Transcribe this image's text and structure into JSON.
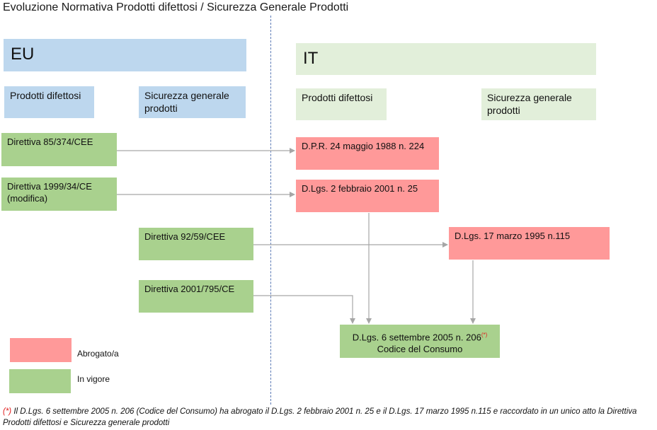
{
  "title": "Evoluzione Normativa Prodotti difettosi / Sicurezza Generale Prodotti",
  "eu": {
    "header": "EU",
    "col1": "Prodotti difettosi",
    "col2": "Sicurezza generale prodotti"
  },
  "it": {
    "header": "IT",
    "col1": "Prodotti difettosi",
    "col2": "Sicurezza generale prodotti"
  },
  "nodes": {
    "dir85": "Direttiva 85/374/CEE",
    "dir1999_line1": "Direttiva 1999/34/CE",
    "dir1999_line2": "(modifica)",
    "dir92": "Direttiva 92/59/CEE",
    "dir2001": "Direttiva 2001/795/CE",
    "dpr1988": "D.P.R. 24 maggio 1988 n. 224",
    "dlgs2001": "D.Lgs. 2 febbraio 2001 n. 25",
    "dlgs1995": "D.Lgs. 17 marzo 1995 n.115",
    "codice_line1": "D.Lgs. 6 settembre 2005 n. 206",
    "codice_mark": "(*)",
    "codice_line2": "Codice del Consumo"
  },
  "legend": {
    "abrogato": "Abrogato/a",
    "vigore": "In vigore"
  },
  "footnote": {
    "mark": "(*)",
    "text": " Il D.Lgs. 6 settembre 2005 n. 206 (Codice del Consumo) ha abrogato il D.Lgs. 2 febbraio 2001 n. 25 e il D.Lgs. 17 marzo 1995 n.115 e raccordato in un unico atto la Direttiva Prodotti difettosi e Sicurezza generale prodotti"
  },
  "colors": {
    "eu_header": "#bdd7ee",
    "it_header": "#e2efda",
    "in_vigore": "#a9d18e",
    "abrogato": "#ff9999",
    "arrow": "#a6a6a6",
    "divider": "#5a79b5"
  }
}
